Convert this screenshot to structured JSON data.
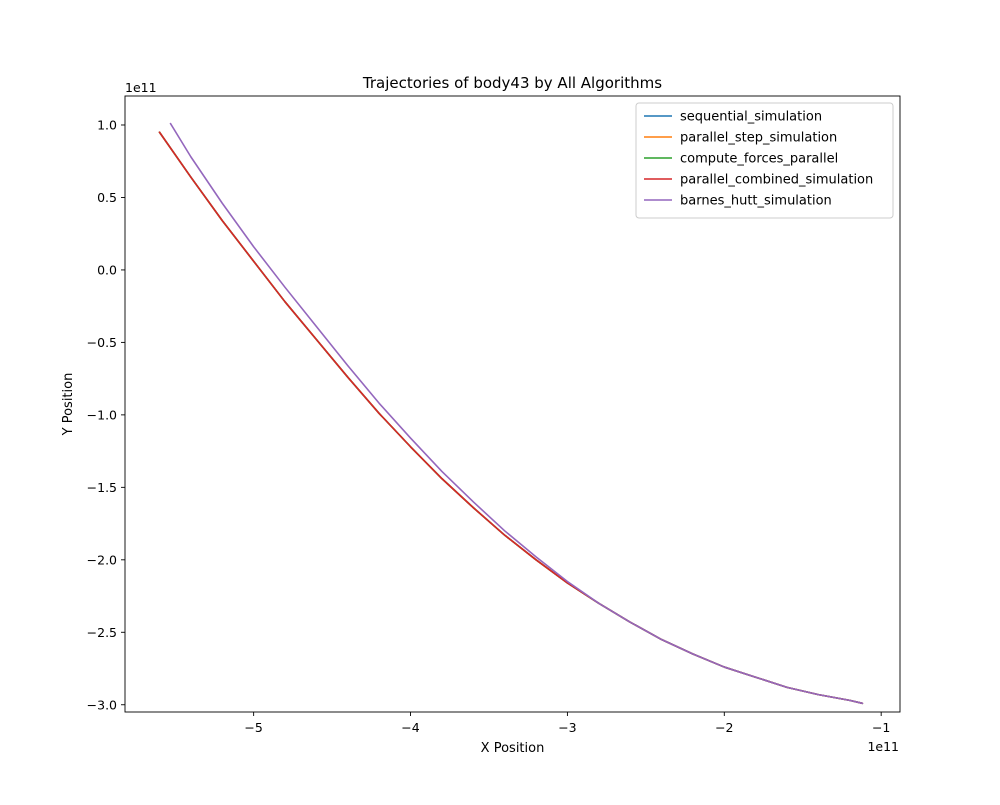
{
  "chart_data": {
    "type": "line",
    "title": "Trajectories of body43 by All Algorithms",
    "xlabel": "X Position",
    "ylabel": "Y Position",
    "x_offset_label": "1e11",
    "y_offset_label": "1e11",
    "x_scale": 100000000000,
    "y_scale": 100000000000,
    "xlim": [
      -5.82,
      -0.88
    ],
    "ylim": [
      -3.05,
      1.2
    ],
    "x_ticks": [
      {
        "value": -5,
        "label": "−5"
      },
      {
        "value": -4,
        "label": "−4"
      },
      {
        "value": -3,
        "label": "−3"
      },
      {
        "value": -2,
        "label": "−2"
      },
      {
        "value": -1,
        "label": "−1"
      }
    ],
    "y_ticks": [
      {
        "value": 1.0,
        "label": "1.0"
      },
      {
        "value": 0.5,
        "label": "0.5"
      },
      {
        "value": 0.0,
        "label": "0.0"
      },
      {
        "value": -0.5,
        "label": "−0.5"
      },
      {
        "value": -1.0,
        "label": "−1.0"
      },
      {
        "value": -1.5,
        "label": "−1.5"
      },
      {
        "value": -2.0,
        "label": "−2.0"
      },
      {
        "value": -2.5,
        "label": "−2.5"
      },
      {
        "value": -3.0,
        "label": "−3.0"
      }
    ],
    "grid": false,
    "legend_position": "top-right",
    "series": [
      {
        "name": "sequential_simulation",
        "color": "#1f77b4",
        "x": [
          -5.6,
          -5.4,
          -5.2,
          -5.0,
          -4.8,
          -4.6,
          -4.4,
          -4.2,
          -4.0,
          -3.8,
          -3.6,
          -3.4,
          -3.2,
          -3.0,
          -2.8,
          -2.6,
          -2.4,
          -2.2,
          -2.0,
          -1.8,
          -1.6,
          -1.4,
          -1.2,
          -1.12
        ],
        "y": [
          0.95,
          0.64,
          0.34,
          0.06,
          -0.22,
          -0.48,
          -0.74,
          -0.99,
          -1.22,
          -1.44,
          -1.64,
          -1.83,
          -2.0,
          -2.16,
          -2.3,
          -2.43,
          -2.55,
          -2.65,
          -2.74,
          -2.81,
          -2.88,
          -2.93,
          -2.97,
          -2.99
        ]
      },
      {
        "name": "parallel_step_simulation",
        "color": "#ff7f0e",
        "x": [
          -5.6,
          -5.4,
          -5.2,
          -5.0,
          -4.8,
          -4.6,
          -4.4,
          -4.2,
          -4.0,
          -3.8,
          -3.6,
          -3.4,
          -3.2,
          -3.0,
          -2.8,
          -2.6,
          -2.4,
          -2.2,
          -2.0,
          -1.8,
          -1.6,
          -1.4,
          -1.2,
          -1.12
        ],
        "y": [
          0.95,
          0.64,
          0.34,
          0.06,
          -0.22,
          -0.48,
          -0.74,
          -0.99,
          -1.22,
          -1.44,
          -1.64,
          -1.83,
          -2.0,
          -2.16,
          -2.3,
          -2.43,
          -2.55,
          -2.65,
          -2.74,
          -2.81,
          -2.88,
          -2.93,
          -2.97,
          -2.99
        ]
      },
      {
        "name": "compute_forces_parallel",
        "color": "#2ca02c",
        "x": [
          -5.6,
          -5.4,
          -5.2,
          -5.0,
          -4.8,
          -4.6,
          -4.4,
          -4.2,
          -4.0,
          -3.8,
          -3.6,
          -3.4,
          -3.2,
          -3.0,
          -2.8,
          -2.6,
          -2.4,
          -2.2,
          -2.0,
          -1.8,
          -1.6,
          -1.4,
          -1.2,
          -1.12
        ],
        "y": [
          0.95,
          0.64,
          0.34,
          0.06,
          -0.22,
          -0.48,
          -0.74,
          -0.99,
          -1.22,
          -1.44,
          -1.64,
          -1.83,
          -2.0,
          -2.16,
          -2.3,
          -2.43,
          -2.55,
          -2.65,
          -2.74,
          -2.81,
          -2.88,
          -2.93,
          -2.97,
          -2.99
        ]
      },
      {
        "name": "parallel_combined_simulation",
        "color": "#d62728",
        "x": [
          -5.6,
          -5.4,
          -5.2,
          -5.0,
          -4.8,
          -4.6,
          -4.4,
          -4.2,
          -4.0,
          -3.8,
          -3.6,
          -3.4,
          -3.2,
          -3.0,
          -2.8,
          -2.6,
          -2.4,
          -2.2,
          -2.0,
          -1.8,
          -1.6,
          -1.4,
          -1.2,
          -1.12
        ],
        "y": [
          0.95,
          0.64,
          0.34,
          0.06,
          -0.22,
          -0.48,
          -0.74,
          -0.99,
          -1.22,
          -1.44,
          -1.64,
          -1.83,
          -2.0,
          -2.16,
          -2.3,
          -2.43,
          -2.55,
          -2.65,
          -2.74,
          -2.81,
          -2.88,
          -2.93,
          -2.97,
          -2.99
        ]
      },
      {
        "name": "barnes_hutt_simulation",
        "color": "#9467bd",
        "x": [
          -5.53,
          -5.4,
          -5.2,
          -5.0,
          -4.8,
          -4.6,
          -4.4,
          -4.2,
          -4.0,
          -3.8,
          -3.6,
          -3.4,
          -3.2,
          -3.0,
          -2.8,
          -2.6,
          -2.4,
          -2.2,
          -2.0,
          -1.8,
          -1.6,
          -1.4,
          -1.2,
          -1.12
        ],
        "y": [
          1.01,
          0.78,
          0.46,
          0.16,
          -0.12,
          -0.39,
          -0.66,
          -0.92,
          -1.16,
          -1.39,
          -1.6,
          -1.8,
          -1.98,
          -2.15,
          -2.3,
          -2.43,
          -2.55,
          -2.65,
          -2.74,
          -2.81,
          -2.88,
          -2.93,
          -2.97,
          -2.99
        ]
      }
    ]
  }
}
